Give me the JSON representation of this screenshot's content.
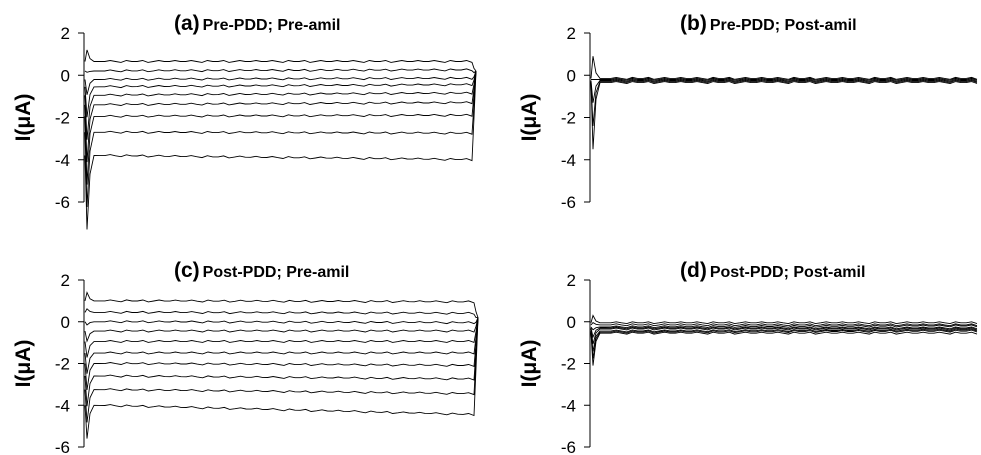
{
  "chart_data": [
    {
      "panel": "(a)",
      "title": "Pre-PDD; Pre-amil",
      "type": "line",
      "ylabel": "I(μA)",
      "xlabel": "",
      "ylim": [
        -6,
        2
      ],
      "yticks": [
        2,
        0,
        -2,
        -4,
        -6
      ],
      "series": [
        {
          "values": [
            0.65,
            0.65
          ]
        },
        {
          "values": [
            0.2,
            0.25
          ]
        },
        {
          "values": [
            -0.2,
            -0.15
          ]
        },
        {
          "values": [
            -0.55,
            -0.45
          ]
        },
        {
          "values": [
            -0.95,
            -0.85
          ]
        },
        {
          "values": [
            -1.4,
            -1.3
          ]
        },
        {
          "values": [
            -1.95,
            -1.9
          ]
        },
        {
          "values": [
            -2.7,
            -2.75
          ]
        },
        {
          "values": [
            -3.8,
            -4.0
          ]
        }
      ]
    },
    {
      "panel": "(b)",
      "title": "Pre-PDD; Post-amil",
      "type": "line",
      "ylabel": "I(μA)",
      "xlabel": "",
      "ylim": [
        -6,
        2
      ],
      "yticks": [
        2,
        0,
        -2,
        -4,
        -6
      ],
      "series": [
        {
          "values": [
            -0.15,
            -0.15
          ]
        },
        {
          "values": [
            -0.2,
            -0.2
          ]
        },
        {
          "values": [
            -0.25,
            -0.25
          ]
        },
        {
          "values": [
            -0.3,
            -0.3
          ]
        },
        {
          "values": [
            -0.35,
            -0.35
          ]
        }
      ]
    },
    {
      "panel": "(c)",
      "title": "Post-PDD; Pre-amil",
      "type": "line",
      "ylabel": "I(μA)",
      "xlabel": "",
      "ylim": [
        -6,
        2
      ],
      "yticks": [
        2,
        0,
        -2,
        -4,
        -6
      ],
      "series": [
        {
          "values": [
            1.0,
            0.95
          ]
        },
        {
          "values": [
            0.45,
            0.4
          ]
        },
        {
          "values": [
            0.0,
            -0.05
          ]
        },
        {
          "values": [
            -0.45,
            -0.45
          ]
        },
        {
          "values": [
            -0.95,
            -0.95
          ]
        },
        {
          "values": [
            -1.5,
            -1.5
          ]
        },
        {
          "values": [
            -2.0,
            -2.1
          ]
        },
        {
          "values": [
            -2.6,
            -2.75
          ]
        },
        {
          "values": [
            -3.25,
            -3.45
          ]
        },
        {
          "values": [
            -4.0,
            -4.45
          ]
        }
      ]
    },
    {
      "panel": "(d)",
      "title": "Post-PDD; Post-amil",
      "type": "line",
      "ylabel": "I(μA)",
      "xlabel": "",
      "ylim": [
        -6,
        2
      ],
      "yticks": [
        2,
        0,
        -2,
        -4,
        -6
      ],
      "series": [
        {
          "values": [
            -0.05,
            -0.05
          ]
        },
        {
          "values": [
            -0.15,
            -0.15
          ]
        },
        {
          "values": [
            -0.25,
            -0.2
          ]
        },
        {
          "values": [
            -0.3,
            -0.3
          ]
        },
        {
          "values": [
            -0.35,
            -0.35
          ]
        },
        {
          "values": [
            -0.45,
            -0.4
          ]
        },
        {
          "values": [
            -0.5,
            -0.45
          ]
        },
        {
          "values": [
            -0.55,
            -0.55
          ]
        }
      ]
    }
  ]
}
